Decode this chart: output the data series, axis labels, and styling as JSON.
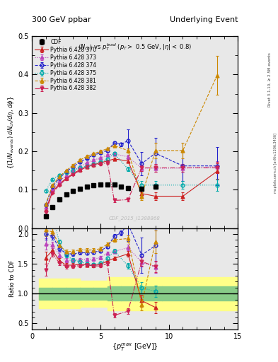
{
  "title_left": "300 GeV ppbar",
  "title_right": "Underlying Event",
  "subtitle": "$\\langle N_{ch}\\rangle$ vs $p_T^{lead}$ ($p_T >$ 0.5 GeV, $|\\eta| <$ 0.8)",
  "watermark": "CDF_2015_I1388868",
  "rivet_label": "Rivet 3.1.10, ≥ 2.5M events",
  "mcplots_label": "mcplots.cern.ch [arXiv:1306.3436]",
  "xlabel": "{$p_T^{max}$ [GeV]}",
  "ylabel_main": "{(1/$N_{events}$) $dN_{ch}/d\\eta$, $d\\phi$}",
  "ylabel_ratio": "Ratio to CDF",
  "xlim": [
    0,
    15
  ],
  "ylim_main": [
    0.0,
    0.5
  ],
  "ylim_ratio": [
    0.4,
    2.1
  ],
  "main_yticks": [
    0.0,
    0.1,
    0.2,
    0.3,
    0.4,
    0.5
  ],
  "ratio_yticks": [
    0.5,
    1.0,
    1.5,
    2.0
  ],
  "cdf_x": [
    1.0,
    1.5,
    2.0,
    2.5,
    3.0,
    3.5,
    4.0,
    4.5,
    5.0,
    5.5,
    6.0,
    6.5,
    7.0,
    8.0,
    9.0
  ],
  "cdf_y": [
    0.03,
    0.055,
    0.074,
    0.088,
    0.096,
    0.102,
    0.108,
    0.112,
    0.114,
    0.113,
    0.113,
    0.108,
    0.105,
    0.102,
    0.108
  ],
  "cdf_yerr": [
    0.004,
    0.004,
    0.004,
    0.004,
    0.004,
    0.004,
    0.004,
    0.004,
    0.004,
    0.004,
    0.004,
    0.004,
    0.005,
    0.005,
    0.006
  ],
  "p370_x": [
    1.0,
    1.5,
    2.0,
    2.5,
    3.0,
    3.5,
    4.0,
    4.5,
    5.0,
    5.5,
    6.0,
    7.0,
    8.0,
    9.0,
    11.0,
    13.5
  ],
  "p370_y": [
    0.048,
    0.095,
    0.115,
    0.13,
    0.142,
    0.152,
    0.16,
    0.165,
    0.17,
    0.175,
    0.18,
    0.175,
    0.09,
    0.083,
    0.083,
    0.148
  ],
  "p370_yerr": [
    0.003,
    0.003,
    0.003,
    0.003,
    0.003,
    0.003,
    0.003,
    0.003,
    0.003,
    0.003,
    0.003,
    0.005,
    0.01,
    0.01,
    0.01,
    0.02
  ],
  "p370_color": "#cc2222",
  "p370_style": "-",
  "p370_marker": "^",
  "p373_x": [
    1.0,
    1.5,
    2.0,
    2.5,
    3.0,
    3.5,
    4.0,
    4.5,
    5.0,
    5.5,
    6.0,
    7.0,
    8.0,
    9.0,
    11.0,
    13.5
  ],
  "p373_y": [
    0.055,
    0.1,
    0.122,
    0.137,
    0.15,
    0.16,
    0.17,
    0.177,
    0.183,
    0.19,
    0.193,
    0.186,
    0.156,
    0.156,
    0.156,
    0.16
  ],
  "p373_yerr": [
    0.003,
    0.003,
    0.003,
    0.003,
    0.003,
    0.003,
    0.003,
    0.003,
    0.003,
    0.003,
    0.003,
    0.005,
    0.008,
    0.01,
    0.01,
    0.015
  ],
  "p373_color": "#bb44bb",
  "p373_style": ":",
  "p373_marker": "^",
  "p374_x": [
    1.0,
    1.5,
    2.0,
    2.5,
    3.0,
    3.5,
    4.0,
    4.5,
    5.0,
    5.5,
    6.0,
    6.5,
    7.0,
    8.0,
    9.0,
    11.0,
    13.5
  ],
  "p374_y": [
    0.06,
    0.108,
    0.13,
    0.147,
    0.16,
    0.172,
    0.182,
    0.19,
    0.196,
    0.202,
    0.222,
    0.218,
    0.228,
    0.168,
    0.195,
    0.162,
    0.162
  ],
  "p374_yerr": [
    0.003,
    0.003,
    0.003,
    0.003,
    0.003,
    0.003,
    0.003,
    0.003,
    0.003,
    0.003,
    0.004,
    0.005,
    0.03,
    0.03,
    0.04,
    0.04,
    0.05
  ],
  "p374_color": "#2222cc",
  "p374_style": "--",
  "p374_marker": "o",
  "p375_x": [
    1.0,
    1.5,
    2.0,
    2.5,
    3.0,
    3.5,
    4.0,
    4.5,
    5.0,
    5.5,
    6.0,
    7.0,
    8.0,
    9.0,
    11.0,
    13.5
  ],
  "p375_y": [
    0.097,
    0.127,
    0.138,
    0.145,
    0.15,
    0.157,
    0.162,
    0.167,
    0.172,
    0.18,
    0.194,
    0.154,
    0.112,
    0.112,
    0.112,
    0.112
  ],
  "p375_yerr": [
    0.003,
    0.003,
    0.003,
    0.003,
    0.003,
    0.003,
    0.003,
    0.003,
    0.003,
    0.003,
    0.004,
    0.005,
    0.01,
    0.01,
    0.01,
    0.015
  ],
  "p375_color": "#00aaaa",
  "p375_style": ":",
  "p375_marker": "o",
  "p381_x": [
    1.0,
    1.5,
    2.0,
    2.5,
    3.0,
    3.5,
    4.0,
    4.5,
    5.0,
    5.5,
    6.0,
    7.0,
    8.0,
    9.0,
    11.0,
    13.5
  ],
  "p381_y": [
    0.062,
    0.112,
    0.134,
    0.15,
    0.164,
    0.177,
    0.187,
    0.194,
    0.2,
    0.207,
    0.215,
    0.202,
    0.083,
    0.202,
    0.202,
    0.398
  ],
  "p381_yerr": [
    0.003,
    0.003,
    0.003,
    0.003,
    0.003,
    0.003,
    0.003,
    0.003,
    0.003,
    0.003,
    0.004,
    0.006,
    0.01,
    0.02,
    0.02,
    0.05
  ],
  "p381_color": "#cc8800",
  "p381_style": "--",
  "p381_marker": "^",
  "p382_x": [
    1.0,
    1.5,
    2.0,
    2.5,
    3.0,
    3.5,
    4.0,
    4.5,
    5.0,
    5.5,
    6.0,
    7.0,
    8.0,
    9.0,
    11.0,
    13.5
  ],
  "p382_y": [
    0.042,
    0.092,
    0.112,
    0.128,
    0.14,
    0.15,
    0.16,
    0.164,
    0.167,
    0.17,
    0.072,
    0.074,
    0.157,
    0.157,
    0.157,
    0.157
  ],
  "p382_yerr": [
    0.003,
    0.003,
    0.003,
    0.003,
    0.003,
    0.003,
    0.003,
    0.003,
    0.003,
    0.003,
    0.004,
    0.005,
    0.008,
    0.01,
    0.01,
    0.015
  ],
  "p382_color": "#cc2255",
  "p382_style": "-.",
  "p382_marker": "v",
  "band_edges": [
    0.5,
    1.5,
    2.5,
    3.5,
    4.5,
    5.5,
    6.5,
    7.5,
    9.5,
    15.0
  ],
  "band_green_lo": [
    0.9,
    0.9,
    0.9,
    0.9,
    0.9,
    0.88,
    0.88,
    0.88,
    0.88
  ],
  "band_green_hi": [
    1.1,
    1.1,
    1.1,
    1.1,
    1.1,
    1.12,
    1.12,
    1.12,
    1.12
  ],
  "band_yellow_lo": [
    0.75,
    0.75,
    0.75,
    0.78,
    0.78,
    0.72,
    0.72,
    0.72,
    0.72
  ],
  "band_yellow_hi": [
    1.25,
    1.25,
    1.25,
    1.22,
    1.22,
    1.28,
    1.28,
    1.28,
    1.28
  ],
  "bg_color": "#e8e8e8"
}
